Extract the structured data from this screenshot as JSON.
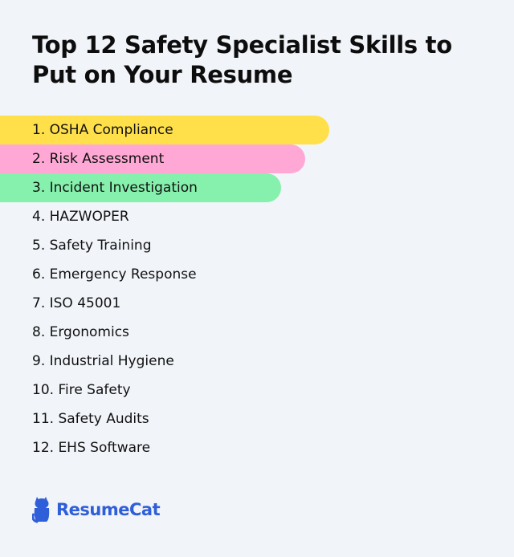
{
  "title": "Top 12 Safety Specialist Skills to Put on Your Resume",
  "colors": {
    "background": "#f1f4f9",
    "highlight_1": "#ffe04b",
    "highlight_2": "#ffa8d6",
    "highlight_3": "#86f0ad",
    "brand_blue": "#2f5ed9"
  },
  "skills": [
    {
      "label": "1. OSHA Compliance"
    },
    {
      "label": "2. Risk Assessment"
    },
    {
      "label": "3. Incident Investigation"
    },
    {
      "label": "4. HAZWOPER"
    },
    {
      "label": "5. Safety Training"
    },
    {
      "label": "6. Emergency Response"
    },
    {
      "label": "7. ISO 45001"
    },
    {
      "label": "8. Ergonomics"
    },
    {
      "label": "9. Industrial Hygiene"
    },
    {
      "label": "10. Fire Safety"
    },
    {
      "label": "11. Safety Audits"
    },
    {
      "label": "12. EHS Software"
    }
  ],
  "logo": {
    "icon": "cat-icon",
    "text": "ResumeCat"
  }
}
